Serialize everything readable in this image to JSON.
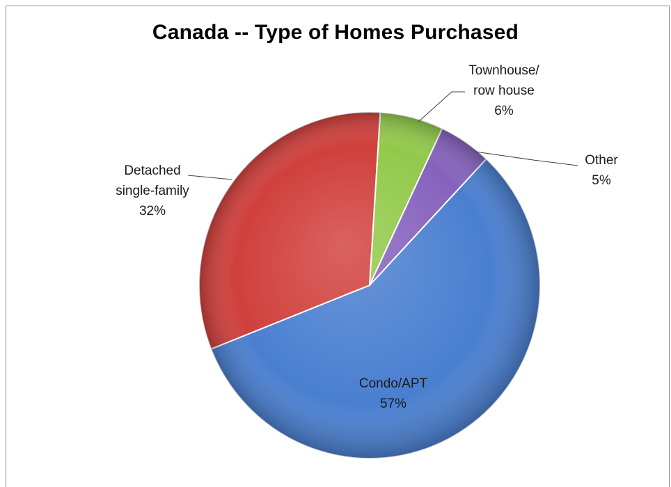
{
  "chart_data": {
    "type": "pie",
    "title": "Canada -- Type of Homes Purchased",
    "categories": [
      "Condo/APT",
      "Detached single-family",
      "Townhouse/ row house",
      "Other"
    ],
    "values": [
      57,
      32,
      6,
      5
    ],
    "value_labels": [
      "57%",
      "32%",
      "6%",
      "5%"
    ],
    "label_lines": [
      [
        "Condo/APT",
        "57%"
      ],
      [
        "Detached",
        "single-family",
        "32%"
      ],
      [
        "Townhouse/",
        "row house",
        "6%"
      ],
      [
        "Other",
        "5%"
      ]
    ],
    "colors": [
      "#4a7fd0",
      "#d0403c",
      "#92c94a",
      "#8662bd"
    ],
    "legend": "none"
  }
}
